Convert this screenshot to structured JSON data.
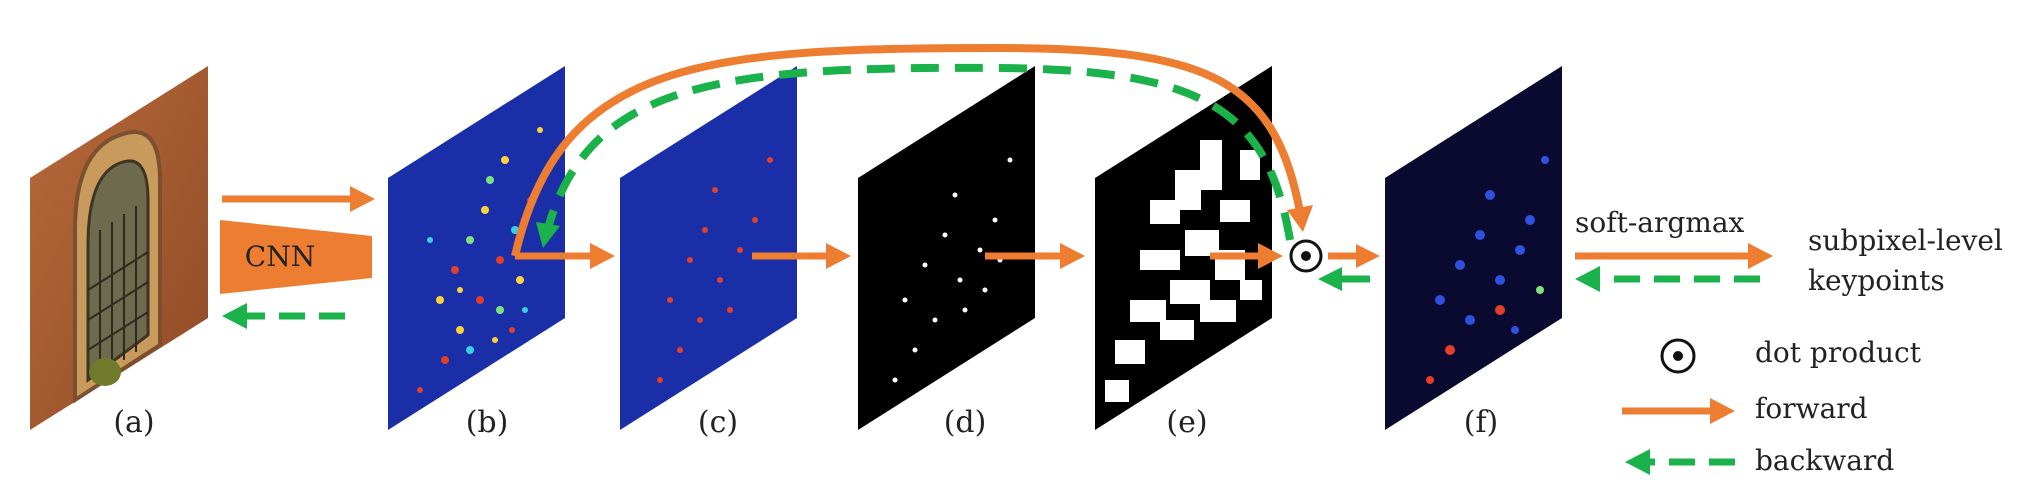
{
  "panels": [
    {
      "id": "a",
      "label": "(a)"
    },
    {
      "id": "b",
      "label": "(b)"
    },
    {
      "id": "c",
      "label": "(c)"
    },
    {
      "id": "d",
      "label": "(d)"
    },
    {
      "id": "e",
      "label": "(e)"
    },
    {
      "id": "f",
      "label": "(f)"
    }
  ],
  "network": {
    "label": "CNN"
  },
  "operation": {
    "label": "soft-argmax"
  },
  "output": {
    "line1": "subpixel-level",
    "line2": "keypoints"
  },
  "legend": {
    "dot": "dot product",
    "forward": "forward",
    "backward": "backward"
  },
  "colors": {
    "forward": "#ed7d31",
    "backward": "#1bb24b",
    "heatmap_bg": "#1a2ea8",
    "mask_bg": "#000000"
  },
  "icons": {
    "dot_product": "circled-dot-icon"
  }
}
